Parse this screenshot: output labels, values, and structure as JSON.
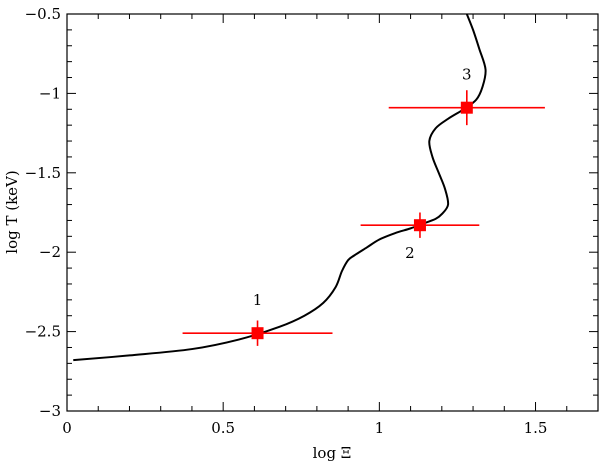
{
  "chart_data": {
    "type": "scatter",
    "title": "",
    "xlabel": "log Ξ",
    "ylabel": "log T (keV)",
    "xlim": [
      0,
      1.7
    ],
    "ylim": [
      -3,
      -0.5
    ],
    "x_ticks": [
      0,
      0.5,
      1,
      1.5
    ],
    "x_tick_labels": [
      "0",
      "0.5",
      "1",
      "1.5"
    ],
    "y_ticks": [
      -3,
      -2.5,
      -2,
      -1.5,
      -1,
      -0.5
    ],
    "y_tick_labels": [
      "−3",
      "−2.5",
      "−2",
      "−1.5",
      "−1",
      "−0.5"
    ],
    "grid": false,
    "legend": "none",
    "curve": {
      "color": "#000000",
      "x": [
        0.02,
        0.2,
        0.4,
        0.55,
        0.68,
        0.76,
        0.82,
        0.86,
        0.88,
        0.9,
        0.92,
        0.96,
        1.0,
        1.05,
        1.1,
        1.14,
        1.18,
        1.2,
        1.22,
        1.21,
        1.19,
        1.17,
        1.16,
        1.18,
        1.22,
        1.27,
        1.31,
        1.33,
        1.34,
        1.32,
        1.3,
        1.28
      ],
      "y": [
        -2.68,
        -2.65,
        -2.61,
        -2.55,
        -2.47,
        -2.4,
        -2.32,
        -2.22,
        -2.12,
        -2.05,
        -2.02,
        -1.97,
        -1.92,
        -1.88,
        -1.85,
        -1.82,
        -1.79,
        -1.76,
        -1.7,
        -1.6,
        -1.5,
        -1.4,
        -1.3,
        -1.22,
        -1.16,
        -1.1,
        -1.04,
        -0.96,
        -0.85,
        -0.72,
        -0.6,
        -0.5
      ]
    },
    "points": [
      {
        "label": "1",
        "x": 0.61,
        "y": -2.51,
        "xerr": [
          0.24,
          0.24
        ],
        "yerr": [
          0.08,
          0.08
        ],
        "label_pos": "above"
      },
      {
        "label": "2",
        "x": 1.13,
        "y": -1.83,
        "xerr": [
          0.19,
          0.19
        ],
        "yerr": [
          0.08,
          0.08
        ],
        "label_pos": "below-left"
      },
      {
        "label": "3",
        "x": 1.28,
        "y": -1.09,
        "xerr": [
          0.25,
          0.25
        ],
        "yerr": [
          0.11,
          0.11
        ],
        "label_pos": "above"
      }
    ],
    "point_color": "#ff0000",
    "errorbar_color": "#ff0000"
  }
}
